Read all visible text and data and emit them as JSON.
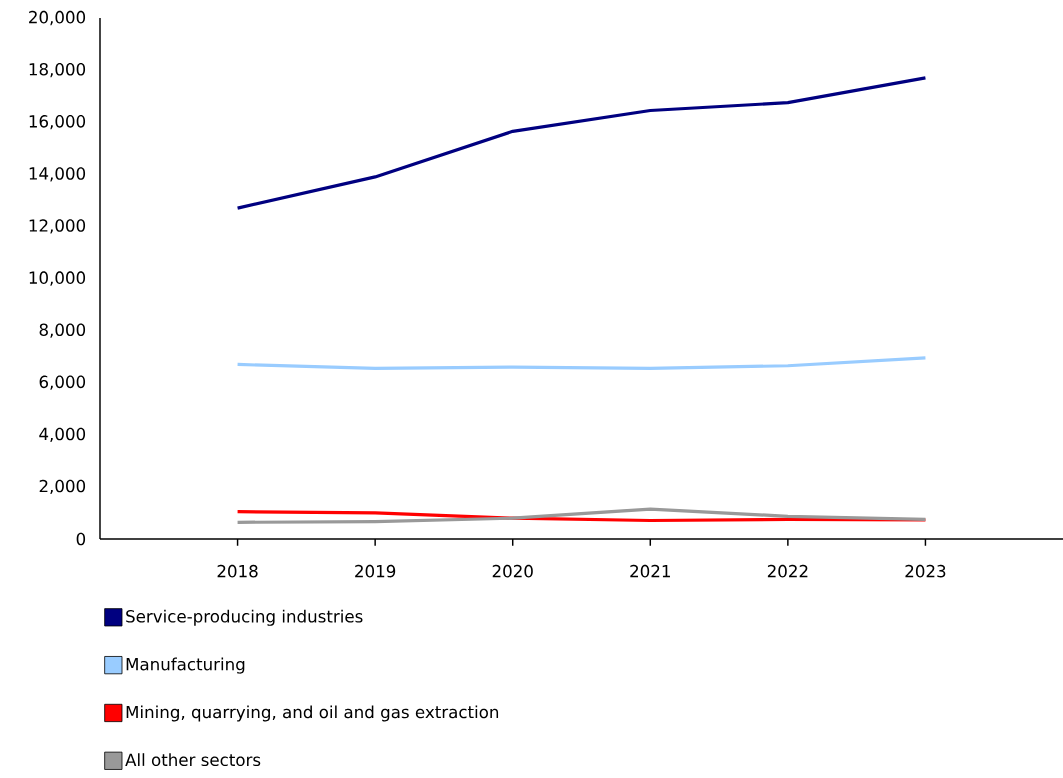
{
  "chart_data": {
    "type": "line",
    "categories": [
      "2018",
      "2019",
      "2020",
      "2021",
      "2022",
      "2023"
    ],
    "series": [
      {
        "name": "Service-producing industries",
        "color": "#000080",
        "values": [
          12700,
          13900,
          15650,
          16450,
          16750,
          17700
        ]
      },
      {
        "name": "Manufacturing",
        "color": "#99ccff",
        "values": [
          6700,
          6550,
          6600,
          6550,
          6650,
          6950
        ]
      },
      {
        "name": "Mining, quarrying, and oil and gas extraction",
        "color": "#ff0000",
        "values": [
          1050,
          1000,
          800,
          710,
          750,
          730
        ]
      },
      {
        "name": "All other sectors",
        "color": "#999999",
        "values": [
          640,
          670,
          800,
          1150,
          870,
          750
        ]
      }
    ],
    "ylim": [
      0,
      20000
    ],
    "yticks": [
      {
        "value": 0,
        "label": "0"
      },
      {
        "value": 2000,
        "label": "2,000"
      },
      {
        "value": 4000,
        "label": "4,000"
      },
      {
        "value": 6000,
        "label": "6,000"
      },
      {
        "value": 8000,
        "label": "8,000"
      },
      {
        "value": 10000,
        "label": "10,000"
      },
      {
        "value": 12000,
        "label": "12,000"
      },
      {
        "value": 14000,
        "label": "14,000"
      },
      {
        "value": 16000,
        "label": "16,000"
      },
      {
        "value": 18000,
        "label": "18,000"
      },
      {
        "value": 20000,
        "label": "20,000"
      }
    ],
    "legend": "bottom",
    "grid": false,
    "marker": "none",
    "line_style": "solid"
  }
}
